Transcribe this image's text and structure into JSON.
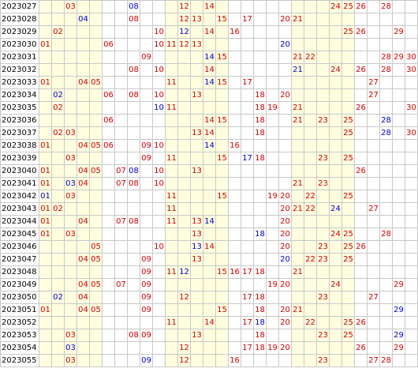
{
  "columns": [
    "01",
    "02",
    "03",
    "04",
    "05",
    "06",
    "07",
    "08",
    "09",
    "10",
    "11",
    "12",
    "13",
    "14",
    "15",
    "16",
    "17",
    "18",
    "19",
    "20",
    "21",
    "22",
    "23",
    "24",
    "25",
    "26",
    "27",
    "28",
    "29",
    "30"
  ],
  "colors": {
    "red": "#d00000",
    "blue": "#0000c8",
    "band": "#ffffe0",
    "grid": "#c8c8c8"
  },
  "rows": [
    {
      "period": "2023027",
      "red": [
        "03",
        "12",
        "14",
        "24",
        "25",
        "26",
        "28"
      ],
      "blue": [
        "08"
      ]
    },
    {
      "period": "2023028",
      "red": [
        "08",
        "12",
        "13",
        "15",
        "17",
        "20",
        "21"
      ],
      "blue": [
        "04"
      ]
    },
    {
      "period": "2023029",
      "red": [
        "02",
        "10",
        "14",
        "16",
        "25",
        "26",
        "29"
      ],
      "blue": [
        "12"
      ]
    },
    {
      "period": "2023030",
      "red": [
        "01",
        "06",
        "10",
        "11",
        "12",
        "13"
      ],
      "blue": [
        "20"
      ]
    },
    {
      "period": "2023031",
      "red": [
        "09",
        "15",
        "21",
        "22",
        "28",
        "29",
        "30"
      ],
      "blue": [
        "14"
      ]
    },
    {
      "period": "2023032",
      "red": [
        "08",
        "10",
        "14",
        "24",
        "26",
        "28",
        "30"
      ],
      "blue": [
        "21"
      ]
    },
    {
      "period": "2023033",
      "red": [
        "01",
        "04",
        "05",
        "11",
        "15",
        "17",
        "27"
      ],
      "blue": [
        "14"
      ]
    },
    {
      "period": "2023034",
      "red": [
        "06",
        "08",
        "10",
        "13",
        "18",
        "20",
        "27"
      ],
      "blue": [
        "02"
      ]
    },
    {
      "period": "2023035",
      "red": [
        "02",
        "11",
        "18",
        "19",
        "21",
        "26",
        "30"
      ],
      "blue": [
        "10"
      ]
    },
    {
      "period": "2023036",
      "red": [
        "06",
        "14",
        "15",
        "18",
        "21",
        "23",
        "25"
      ],
      "blue": [
        "28"
      ]
    },
    {
      "period": "2023037",
      "red": [
        "02",
        "03",
        "13",
        "14",
        "18",
        "25",
        "30"
      ],
      "blue": [
        "28"
      ]
    },
    {
      "period": "2023038",
      "red": [
        "01",
        "04",
        "05",
        "06",
        "09",
        "10",
        "16"
      ],
      "blue": [
        "14"
      ]
    },
    {
      "period": "2023039",
      "red": [
        "03",
        "09",
        "11",
        "15",
        "18",
        "23",
        "25"
      ],
      "blue": [
        "17"
      ]
    },
    {
      "period": "2023040",
      "red": [
        "01",
        "04",
        "05",
        "07",
        "10",
        "13",
        "26"
      ],
      "blue": [
        "08"
      ]
    },
    {
      "period": "2023041",
      "red": [
        "01",
        "04",
        "07",
        "08",
        "10",
        "21",
        "23"
      ],
      "blue": [
        "03"
      ]
    },
    {
      "period": "2023042",
      "red": [
        "03",
        "11",
        "15",
        "19",
        "20",
        "22",
        "25"
      ],
      "blue": [
        "01"
      ]
    },
    {
      "period": "2023043",
      "red": [
        "01",
        "02",
        "11",
        "20",
        "21",
        "22",
        "27"
      ],
      "blue": [
        "24"
      ]
    },
    {
      "period": "2023044",
      "red": [
        "01",
        "04",
        "07",
        "08",
        "11",
        "13",
        "20"
      ],
      "blue": [
        "14"
      ]
    },
    {
      "period": "2023045",
      "red": [
        "01",
        "03",
        "13",
        "20",
        "24",
        "25",
        "28"
      ],
      "blue": [
        "18"
      ]
    },
    {
      "period": "2023046",
      "red": [
        "05",
        "10",
        "14",
        "20",
        "23",
        "25",
        "26"
      ],
      "blue": [
        "13"
      ]
    },
    {
      "period": "2023047",
      "red": [
        "04",
        "05",
        "09",
        "13",
        "22",
        "23",
        "25"
      ],
      "blue": [
        "20"
      ]
    },
    {
      "period": "2023048",
      "red": [
        "09",
        "11",
        "15",
        "16",
        "17",
        "18",
        "21"
      ],
      "blue": [
        "12"
      ]
    },
    {
      "period": "2023049",
      "red": [
        "04",
        "05",
        "07",
        "09",
        "19",
        "20",
        "24",
        "29"
      ],
      "blue": []
    },
    {
      "period": "2023050",
      "red": [
        "04",
        "09",
        "12",
        "17",
        "18",
        "23",
        "27"
      ],
      "blue": [
        "02"
      ]
    },
    {
      "period": "2023051",
      "red": [
        "01",
        "04",
        "05",
        "09",
        "15",
        "18",
        "20",
        "21"
      ],
      "blue": [
        "29"
      ]
    },
    {
      "period": "2023052",
      "red": [
        "11",
        "14",
        "17",
        "20",
        "22",
        "25",
        "26"
      ],
      "blue": [
        "18"
      ]
    },
    {
      "period": "2023053",
      "red": [
        "03",
        "08",
        "09",
        "13",
        "18",
        "23",
        "25"
      ],
      "blue": [
        "29"
      ]
    },
    {
      "period": "2023054",
      "red": [
        "12",
        "17",
        "18",
        "19",
        "20",
        "26",
        "29"
      ],
      "blue": [
        "03"
      ]
    },
    {
      "period": "2023055",
      "red": [
        "03",
        "12",
        "16",
        "23",
        "27",
        "28"
      ],
      "blue": [
        "09"
      ]
    }
  ]
}
